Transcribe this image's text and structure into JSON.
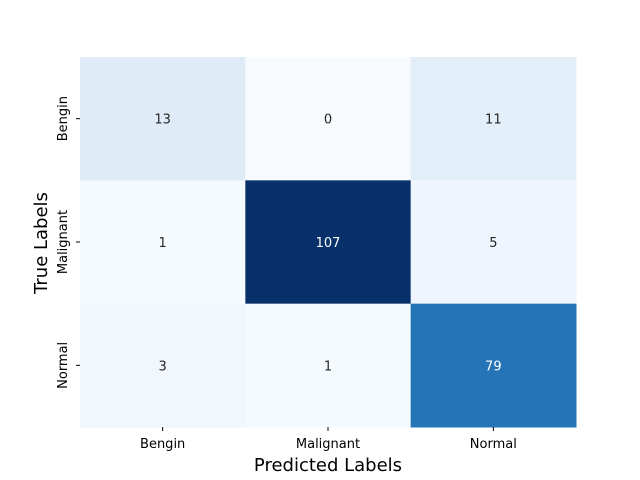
{
  "chart_data": {
    "type": "heatmap",
    "title": "",
    "xlabel": "Predicted Labels",
    "ylabel": "True Labels",
    "x_categories": [
      "Bengin",
      "Malignant",
      "Normal"
    ],
    "y_categories": [
      "Bengin",
      "Malignant",
      "Normal"
    ],
    "values": [
      [
        13,
        0,
        11
      ],
      [
        1,
        107,
        5
      ],
      [
        3,
        1,
        79
      ]
    ],
    "colormap": "Blues",
    "colorbar": false,
    "grid": false,
    "color_range": [
      0,
      107
    ]
  }
}
